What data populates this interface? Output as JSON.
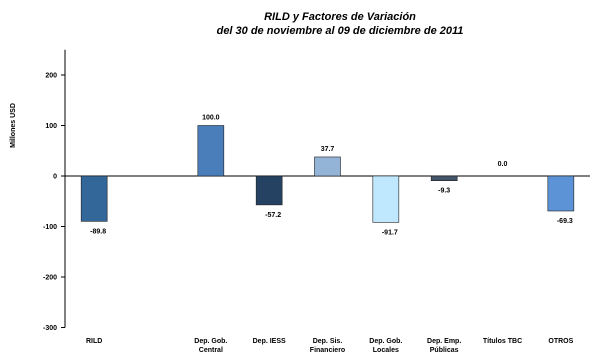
{
  "chart_data": {
    "type": "bar",
    "title": "RILD y Factores de Variación",
    "subtitle": "del 30 de noviembre al 09 de diciembre de 2011",
    "xlabel": "",
    "ylabel": "Millones USD",
    "ylim": [
      -300,
      250
    ],
    "yticks": [
      200,
      100,
      0,
      -100,
      -200,
      -300
    ],
    "grid": false,
    "categories": [
      [
        "RILD"
      ],
      [
        ""
      ],
      [
        "Dep. Gob.",
        "Central"
      ],
      [
        "Dep. IESS"
      ],
      [
        "Dep. Sis.",
        "Financiero"
      ],
      [
        "Dep. Gob.",
        "Locales"
      ],
      [
        "Dep. Emp.",
        "Públicas"
      ],
      [
        "Títulos TBC"
      ],
      [
        "OTROS"
      ]
    ],
    "values": [
      -89.8,
      null,
      100.0,
      -57.2,
      37.7,
      -91.7,
      -9.3,
      0.0,
      -69.3
    ],
    "labels": [
      "-89.8",
      "",
      "100.0",
      "-57.2",
      "37.7",
      "-91.7",
      "-9.3",
      "0.0",
      "-69.3"
    ],
    "colors": [
      "#336699",
      "#ffffff",
      "#4a7ebb",
      "#254263",
      "#93b3d7",
      "#bfe8ff",
      "#43566a",
      "#4a7ebb",
      "#5b93d6"
    ]
  }
}
